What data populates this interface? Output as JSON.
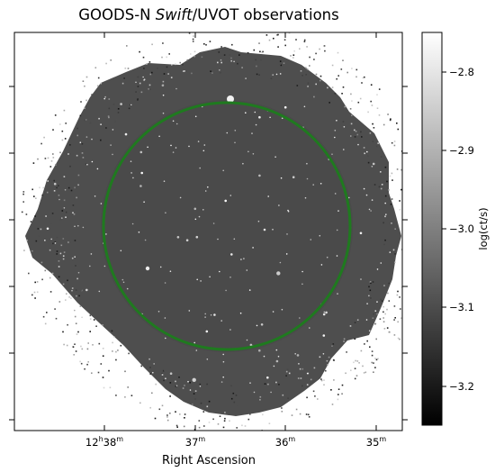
{
  "figure": {
    "title_prefix": "GOODS-N ",
    "title_emph": "Swift",
    "title_suffix": "/UVOT observations",
    "xlabel": "Right Ascension",
    "x_ticks": [
      {
        "label": "12",
        "sup1": "h",
        "mid": "38",
        "sup2": "m"
      },
      {
        "label": "",
        "sup1": "",
        "mid": "37",
        "sup2": "m"
      },
      {
        "label": "",
        "sup1": "",
        "mid": "36",
        "sup2": "m"
      },
      {
        "label": "",
        "sup1": "",
        "mid": "35",
        "sup2": "m"
      }
    ]
  },
  "colorbar": {
    "label": "log(ct/s)",
    "ticks": [
      "−2.8",
      "−2.9",
      "−3.0",
      "−3.1",
      "−3.2"
    ],
    "colormap": "gray"
  },
  "overlay": {
    "shape": "circle",
    "color": "#1f7a1f"
  }
}
